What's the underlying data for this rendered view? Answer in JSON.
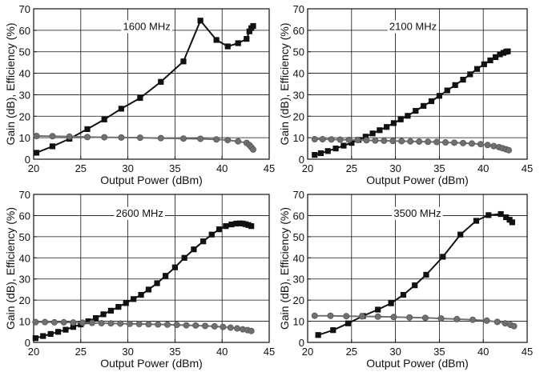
{
  "colors": {
    "efficiency": "#111111",
    "gain": "#707070",
    "axis": "#111111",
    "grid": "#111111"
  },
  "chart_data": [
    {
      "type": "line",
      "title": "1600 MHz",
      "xlabel": "Output Power (dBm)",
      "ylabel": "Gain (dB), Efficiency (%)",
      "xlim": [
        20,
        45
      ],
      "ylim": [
        0,
        70
      ],
      "xticks": [
        "20",
        "25",
        "30",
        "35",
        "40",
        "45"
      ],
      "yticks": [
        "0",
        "10",
        "20",
        "30",
        "40",
        "50",
        "60",
        "70"
      ],
      "grid": true,
      "series": [
        {
          "marker": "square",
          "x": [
            20.3,
            22,
            23.8,
            25.7,
            27.5,
            29.3,
            31.3,
            33.5,
            35.9,
            37.7,
            39.4,
            40.6,
            41.7,
            42.6,
            42.9,
            43.1,
            43.3
          ],
          "y": [
            3,
            6,
            9.5,
            14,
            18.5,
            23.5,
            28.5,
            36,
            45.5,
            64.5,
            55.5,
            52.5,
            54,
            56,
            59.5,
            61,
            62
          ]
        },
        {
          "marker": "circle",
          "x": [
            20.3,
            22,
            23.8,
            25.7,
            27.5,
            29.3,
            31.3,
            33.5,
            35.9,
            37.7,
            39.4,
            40.6,
            41.7,
            42.6,
            42.9,
            43.1,
            43.3
          ],
          "y": [
            10.8,
            10.7,
            10.5,
            10.3,
            10.2,
            10.1,
            10,
            9.8,
            9.6,
            9.5,
            9.2,
            8.9,
            8.3,
            7.6,
            6.6,
            5.6,
            4.5
          ]
        }
      ]
    },
    {
      "type": "line",
      "title": "2100 MHz",
      "xlabel": "Output Power (dBm)",
      "ylabel": "Gain (dB), Efficiency (%)",
      "xlim": [
        20,
        45
      ],
      "ylim": [
        0,
        70
      ],
      "xticks": [
        "20",
        "25",
        "30",
        "35",
        "40",
        "45"
      ],
      "yticks": [
        "0",
        "10",
        "20",
        "30",
        "40",
        "50",
        "60",
        "70"
      ],
      "grid": true,
      "series": [
        {
          "marker": "square",
          "x": [
            20.8,
            21.5,
            22.3,
            23.2,
            24.1,
            25,
            25.8,
            26.6,
            27.4,
            28.2,
            29,
            29.8,
            30.6,
            31.4,
            32.3,
            33.2,
            34.1,
            35,
            35.9,
            36.8,
            37.7,
            38.5,
            39.3,
            40.1,
            40.8,
            41.4,
            41.9,
            42.3,
            42.6,
            42.8
          ],
          "y": [
            2,
            2.8,
            3.8,
            5,
            6.3,
            7.6,
            9,
            10.5,
            12,
            13.5,
            15,
            16.8,
            18.5,
            20.2,
            22.5,
            24.8,
            27,
            29.5,
            32,
            34.5,
            37,
            39.5,
            42,
            44.2,
            46,
            47.5,
            48.8,
            49.5,
            50,
            50.2
          ]
        },
        {
          "marker": "circle",
          "x": [
            20.8,
            21.7,
            22.7,
            23.7,
            24.7,
            25.7,
            26.7,
            27.7,
            28.7,
            29.7,
            30.7,
            31.7,
            32.7,
            33.7,
            34.7,
            35.7,
            36.7,
            37.7,
            38.7,
            39.7,
            40.5,
            41.2,
            41.8,
            42.2,
            42.6,
            42.9
          ],
          "y": [
            9.3,
            9.3,
            9.2,
            9.1,
            9,
            8.9,
            8.8,
            8.7,
            8.6,
            8.5,
            8.4,
            8.3,
            8.2,
            8.1,
            8,
            7.8,
            7.7,
            7.5,
            7.3,
            7,
            6.6,
            6.1,
            5.6,
            5.1,
            4.6,
            4.2
          ]
        }
      ]
    },
    {
      "type": "line",
      "title": "2600 MHz",
      "xlabel": "Output Power (dBm)",
      "ylabel": "Gain (dB), Efficiency (%)",
      "xlim": [
        20,
        45
      ],
      "ylim": [
        0,
        70
      ],
      "xticks": [
        "20",
        "25",
        "30",
        "35",
        "40",
        "45"
      ],
      "yticks": [
        "0",
        "10",
        "20",
        "30",
        "40",
        "50",
        "60",
        "70"
      ],
      "grid": true,
      "series": [
        {
          "marker": "square",
          "x": [
            20.2,
            21,
            21.8,
            22.6,
            23.4,
            24.2,
            25,
            25.8,
            26.6,
            27.4,
            28.2,
            29,
            29.8,
            30.6,
            31.4,
            32.2,
            33.1,
            34,
            35,
            36,
            37,
            38,
            38.9,
            39.7,
            40.4,
            41,
            41.5,
            41.9,
            42.2,
            42.5,
            42.8,
            43.1
          ],
          "y": [
            2,
            3,
            4,
            5,
            6,
            7.3,
            8.5,
            10,
            11.5,
            13.3,
            15,
            16.8,
            18.6,
            20.5,
            22.5,
            25,
            28,
            31.5,
            35.5,
            40,
            44,
            47.8,
            51,
            53.5,
            55,
            55.8,
            56.2,
            56.3,
            56.2,
            55.9,
            55.5,
            55
          ]
        },
        {
          "marker": "circle",
          "x": [
            20.2,
            21.2,
            22.2,
            23.2,
            24.2,
            25.2,
            26.2,
            27.2,
            28.2,
            29.2,
            30.2,
            31.2,
            32.2,
            33.2,
            34.2,
            35.2,
            36.2,
            37.2,
            38.2,
            39.2,
            40.1,
            40.9,
            41.6,
            42.2,
            42.7,
            43.1
          ],
          "y": [
            9.6,
            9.6,
            9.5,
            9.5,
            9.4,
            9.3,
            9.2,
            9.1,
            9,
            8.9,
            8.8,
            8.7,
            8.6,
            8.5,
            8.4,
            8.3,
            8.1,
            8,
            7.8,
            7.6,
            7.3,
            7,
            6.6,
            6.2,
            5.8,
            5.4
          ]
        }
      ]
    },
    {
      "type": "line",
      "title": "3500 MHz",
      "xlabel": "Output Power (dBm)",
      "ylabel": "Gain (dB), Efficiency (%)",
      "xlim": [
        20,
        45
      ],
      "ylim": [
        0,
        70
      ],
      "xticks": [
        "20",
        "25",
        "30",
        "35",
        "40",
        "45"
      ],
      "yticks": [
        "0",
        "10",
        "20",
        "30",
        "40",
        "50",
        "60",
        "70"
      ],
      "grid": true,
      "series": [
        {
          "marker": "square",
          "x": [
            21.2,
            22.9,
            24.6,
            26.3,
            28,
            29.5,
            30.9,
            32.2,
            33.5,
            35.4,
            37.4,
            39.2,
            40.6,
            42,
            42.6,
            43,
            43.3
          ],
          "y": [
            3.5,
            5.8,
            9,
            12.5,
            15.5,
            18.5,
            22.5,
            27,
            32,
            40.5,
            51,
            57.5,
            60.2,
            60.7,
            59.2,
            58,
            56.8
          ]
        },
        {
          "marker": "circle",
          "x": [
            20.8,
            22.6,
            24.4,
            26.2,
            28,
            29.8,
            31.6,
            33.4,
            35.2,
            37,
            38.8,
            40.4,
            41.6,
            42.5,
            43.1,
            43.5
          ],
          "y": [
            12.6,
            12.6,
            12.4,
            12.3,
            12.2,
            12,
            11.8,
            11.6,
            11.3,
            11,
            10.7,
            10.3,
            9.7,
            9,
            8.3,
            7.7
          ]
        }
      ]
    }
  ]
}
